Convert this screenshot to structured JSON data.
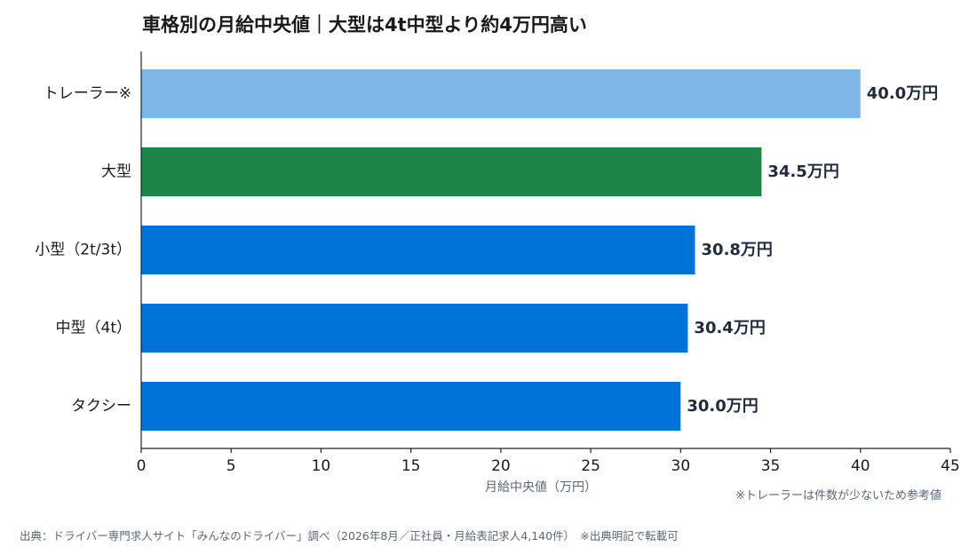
{
  "title": "車格別の月給中央値｜大型は4t中型より約4万円高い",
  "note": "※トレーラーは件数が少ないため参考値",
  "source": "出典：ドライバー専門求人サイト「みんなのドライバー」調べ（2026年8月／正社員・月給表記求人4,140件）　※出典明記で転載可",
  "chart_data": {
    "type": "bar",
    "orientation": "horizontal",
    "categories": [
      "トレーラー※",
      "大型",
      "小型（2t/3t）",
      "中型（4t）",
      "タクシー"
    ],
    "values": [
      40.0,
      34.5,
      30.8,
      30.4,
      30.0
    ],
    "value_labels": [
      "40.0万円",
      "34.5万円",
      "30.8万円",
      "30.4万円",
      "30.0万円"
    ],
    "colors": [
      "#7fb6e6",
      "#1f844a",
      "#0073d9",
      "#0073d9",
      "#0073d9"
    ],
    "xlabel": "月給中央値（万円）",
    "xlim": [
      0,
      45
    ],
    "xticks": [
      0,
      5,
      10,
      15,
      20,
      25,
      30,
      35,
      40,
      45
    ],
    "grid": false
  }
}
